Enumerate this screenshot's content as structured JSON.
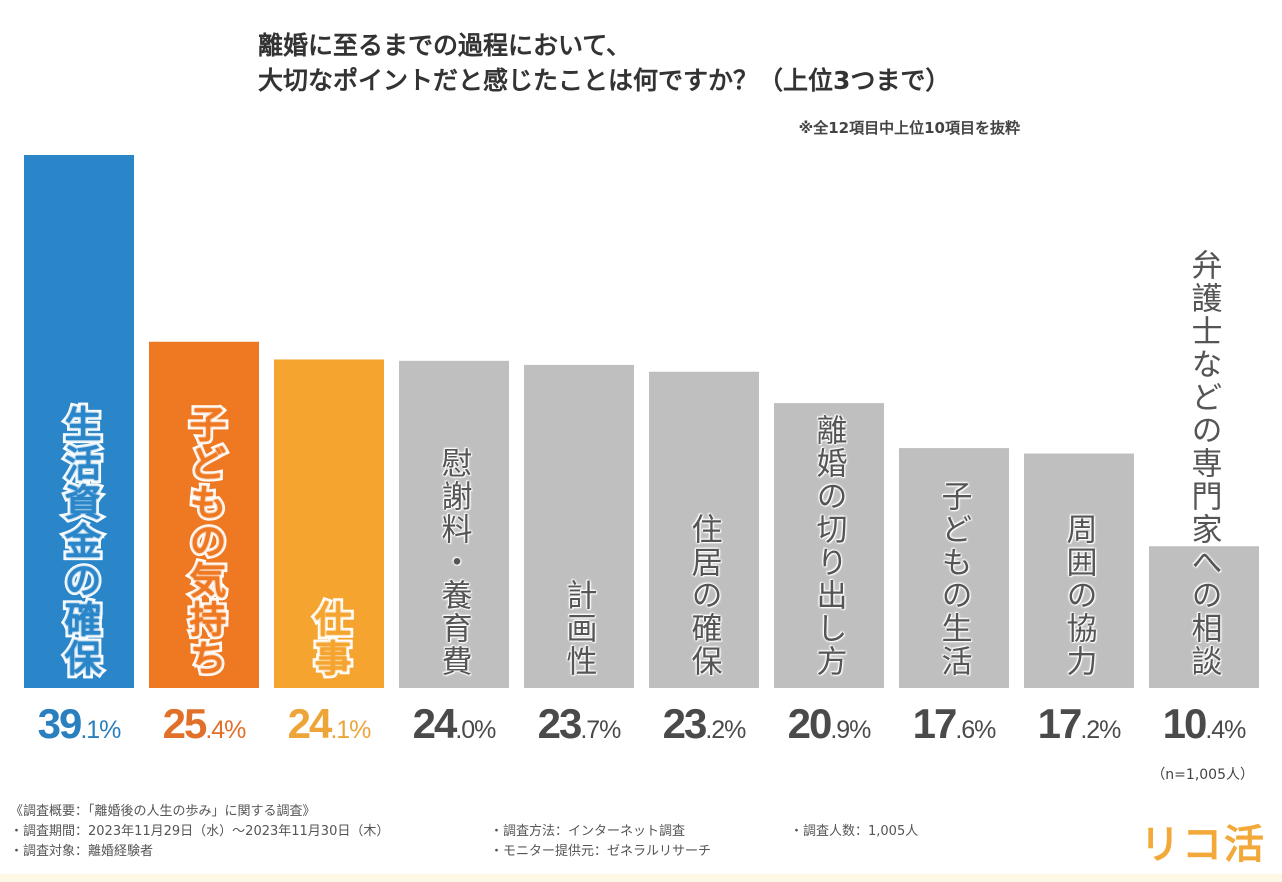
{
  "title": {
    "line1": "離婚に至るまでの過程において、",
    "line2": "大切なポイントだと感じたことは何ですか？（上位3つまで）"
  },
  "note": "※全12項目中上位10項目を抜粋",
  "chart_data": {
    "type": "bar",
    "title": "離婚に至るまでの過程において、大切なポイントだと感じたことは何ですか？（上位3つまで）",
    "subtitle": "※全12項目中上位10項目を抜粋",
    "xlabel": "",
    "ylabel": "",
    "unit": "%",
    "ylim": [
      0,
      39.1
    ],
    "grid": false,
    "categories": [
      "生活資金の確保",
      "子どもの気持ち",
      "仕事",
      "慰謝料・養育費",
      "計画性",
      "住居の確保",
      "離婚の切り出し方",
      "子どもの生活",
      "周囲の協力",
      "弁護士などの専門家への相談"
    ],
    "values": [
      39.1,
      25.4,
      24.1,
      24.0,
      23.7,
      23.2,
      20.9,
      17.6,
      17.2,
      10.4
    ],
    "value_labels": [
      {
        "int": "39",
        "dec": ".1%"
      },
      {
        "int": "25",
        "dec": ".4%"
      },
      {
        "int": "24",
        "dec": ".1%"
      },
      {
        "int": "24",
        "dec": ".0%"
      },
      {
        "int": "23",
        "dec": ".7%"
      },
      {
        "int": "23",
        "dec": ".2%"
      },
      {
        "int": "20",
        "dec": ".9%"
      },
      {
        "int": "17",
        "dec": ".6%"
      },
      {
        "int": "17",
        "dec": ".2%"
      },
      {
        "int": "10",
        "dec": ".4%"
      }
    ],
    "colors": [
      "#2a86c8",
      "#ef7822",
      "#f5a430",
      "#bfbfbf",
      "#bfbfbf",
      "#bfbfbf",
      "#bfbfbf",
      "#bfbfbf",
      "#bfbfbf",
      "#bfbfbf"
    ],
    "value_colors": [
      "#2a7fbf",
      "#e0702a",
      "#eda53a",
      "#4a4a4a",
      "#4a4a4a",
      "#4a4a4a",
      "#4a4a4a",
      "#4a4a4a",
      "#4a4a4a",
      "#4a4a4a"
    ],
    "sample_note": "（n=1,005人）"
  },
  "footer": {
    "heading": "《調査概要：「離婚後の人生の歩み」に関する調査》",
    "period": "・調査期間：2023年11月29日（水）～2023年11月30日（木）",
    "target": "・調査対象：離婚経験者",
    "method": "・調査方法：インターネット調査",
    "provider": "・モニター提供元：ゼネラルリサーチ",
    "count": "・調査人数：1,005人"
  },
  "logo": "リコ活"
}
